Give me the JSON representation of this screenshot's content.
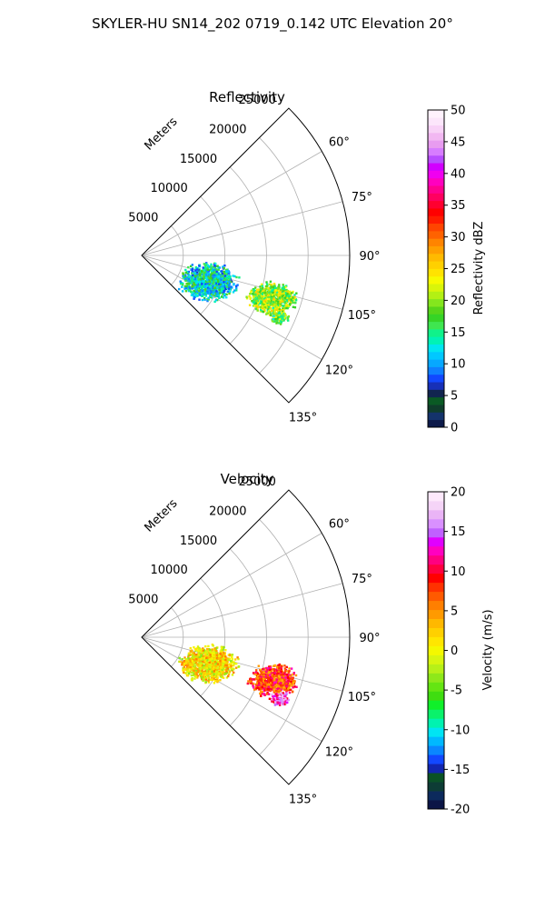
{
  "figure_title": "SKYLER-HU  SN14_202  0719_0.142 UTC Elevation 20°",
  "panels": [
    {
      "id": "reflectivity",
      "title": "Reflectivity",
      "range_label": "Meters",
      "range_ticks": [
        "5000",
        "10000",
        "15000",
        "20000",
        "25000"
      ],
      "angle_ticks": [
        "60°",
        "75°",
        "90°",
        "105°",
        "120°",
        "135°"
      ],
      "colorbar_label": "Reflectivity dBZ",
      "colorbar_ticks": [
        "0",
        "5",
        "10",
        "15",
        "20",
        "25",
        "30",
        "35",
        "40",
        "45",
        "50"
      ],
      "colorbar_colors": [
        "#0d1a4a",
        "#14336b",
        "#0f3d2b",
        "#0a5a24",
        "#11254f",
        "#1730b8",
        "#1248ff",
        "#0f7fff",
        "#07a8ff",
        "#00c8ff",
        "#00e6f0",
        "#00f2b6",
        "#10f28a",
        "#3fe650",
        "#36d426",
        "#57d51a",
        "#84e61d",
        "#b3f014",
        "#d9f50a",
        "#f7fa00",
        "#ffe300",
        "#ffd000",
        "#ffba00",
        "#ff9f00",
        "#ff8400",
        "#ff6200",
        "#ff4500",
        "#ff1c00",
        "#ff0000",
        "#ff0030",
        "#ff0060",
        "#ff008f",
        "#ff00bf",
        "#f000f0",
        "#d200ff",
        "#b84dff",
        "#d77dff",
        "#e89cf0",
        "#f2b8f2",
        "#f8d2f7",
        "#fce6fb",
        "#fff2fd"
      ]
    },
    {
      "id": "velocity",
      "title": "Velocity",
      "range_label": "Meters",
      "range_ticks": [
        "5000",
        "10000",
        "15000",
        "20000",
        "25000"
      ],
      "angle_ticks": [
        "60°",
        "75°",
        "90°",
        "105°",
        "120°",
        "135°"
      ],
      "colorbar_label": "Velocity (m/s)",
      "colorbar_ticks": [
        "-20",
        "-15",
        "-10",
        "-5",
        "0",
        "5",
        "10",
        "15",
        "20"
      ],
      "colorbar_colors": [
        "#0b1546",
        "#0c2a5c",
        "#0d3c35",
        "#0a5226",
        "#1226b0",
        "#1248ff",
        "#0a86ff",
        "#00b8ff",
        "#00e4f3",
        "#00f2b0",
        "#0af26b",
        "#10f02a",
        "#3fdd10",
        "#64e512",
        "#8ee81a",
        "#b7f018",
        "#d8f510",
        "#f4f800",
        "#ffe600",
        "#ffd000",
        "#ffb800",
        "#ff9a00",
        "#ff7f00",
        "#ff5a00",
        "#ff3200",
        "#ff0000",
        "#ff0040",
        "#ff0080",
        "#ff00c0",
        "#e000ff",
        "#c060ff",
        "#d990ff",
        "#eab4f6",
        "#f5d4f7",
        "#fde8fb"
      ]
    }
  ],
  "chart_data": [
    {
      "type": "polar-sector-radar",
      "title": "Reflectivity",
      "units": "dBZ",
      "colorbar_range": [
        0,
        50
      ],
      "range_max_m": 25000,
      "range_ticks_m": [
        5000,
        10000,
        15000,
        20000,
        25000
      ],
      "azimuth_range_deg": [
        45,
        135
      ],
      "azimuth_ticks_deg": [
        60,
        75,
        90,
        105,
        120,
        135
      ],
      "echoes": [
        {
          "azimuth_deg": 111,
          "range_m": 8500,
          "extent_m": 3500,
          "typical_value": 13
        },
        {
          "azimuth_deg": 108,
          "range_m": 16500,
          "extent_m": 3000,
          "typical_value": 20
        },
        {
          "azimuth_deg": 114,
          "range_m": 18000,
          "extent_m": 1200,
          "typical_value": 18
        }
      ]
    },
    {
      "type": "polar-sector-radar",
      "title": "Velocity",
      "units": "m/s",
      "colorbar_range": [
        -20,
        20
      ],
      "range_max_m": 25000,
      "range_ticks_m": [
        5000,
        10000,
        15000,
        20000,
        25000
      ],
      "azimuth_range_deg": [
        45,
        135
      ],
      "azimuth_ticks_deg": [
        60,
        75,
        90,
        105,
        120,
        135
      ],
      "echoes": [
        {
          "azimuth_deg": 111,
          "range_m": 8500,
          "extent_m": 3500,
          "typical_value": 1
        },
        {
          "azimuth_deg": 108,
          "range_m": 16500,
          "extent_m": 3000,
          "typical_value": 8
        },
        {
          "azimuth_deg": 114,
          "range_m": 18000,
          "extent_m": 1200,
          "typical_value": 14
        }
      ]
    }
  ]
}
